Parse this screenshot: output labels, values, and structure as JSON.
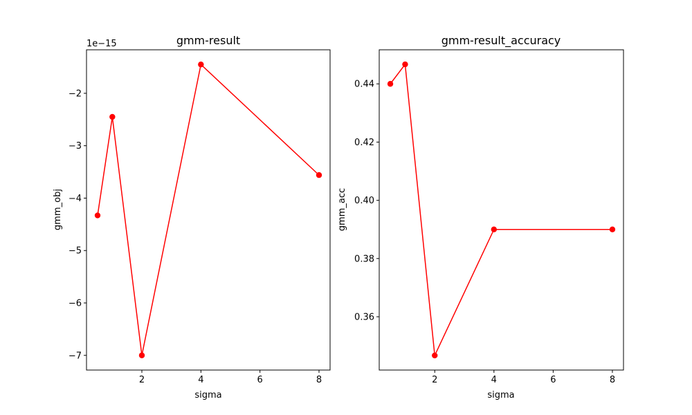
{
  "chart_data": [
    {
      "type": "line",
      "title": "gmm-result",
      "xlabel": "sigma",
      "ylabel": "gmm_obj",
      "offset_text": "1e−15",
      "x": [
        0.5,
        1,
        2,
        4,
        8
      ],
      "values": [
        -4.33,
        -2.45,
        -7.0,
        -1.45,
        -3.56
      ],
      "xlim": [
        0.125,
        8.375
      ],
      "ylim": [
        -7.28,
        -1.17
      ],
      "xticks": [
        2,
        4,
        6,
        8
      ],
      "xtick_labels": [
        "2",
        "4",
        "6",
        "8"
      ],
      "yticks": [
        -7,
        -6,
        -5,
        -4,
        -3,
        -2
      ],
      "ytick_labels": [
        "−7",
        "−6",
        "−5",
        "−4",
        "−3",
        "−2"
      ],
      "color": "#ff0000",
      "marker": "circle",
      "grid": false
    },
    {
      "type": "line",
      "title": "gmm-result_accuracy",
      "xlabel": "sigma",
      "ylabel": "gmm_acc",
      "x": [
        0.5,
        1,
        2,
        4,
        8
      ],
      "values": [
        0.44,
        0.4467,
        0.3467,
        0.39,
        0.39
      ],
      "xlim": [
        0.125,
        8.375
      ],
      "ylim": [
        0.3417,
        0.4517
      ],
      "xticks": [
        2,
        4,
        6,
        8
      ],
      "xtick_labels": [
        "2",
        "4",
        "6",
        "8"
      ],
      "yticks": [
        0.36,
        0.38,
        0.4,
        0.42,
        0.44
      ],
      "ytick_labels": [
        "0.36",
        "0.38",
        "0.40",
        "0.42",
        "0.44"
      ],
      "color": "#ff0000",
      "marker": "circle",
      "grid": false
    }
  ]
}
